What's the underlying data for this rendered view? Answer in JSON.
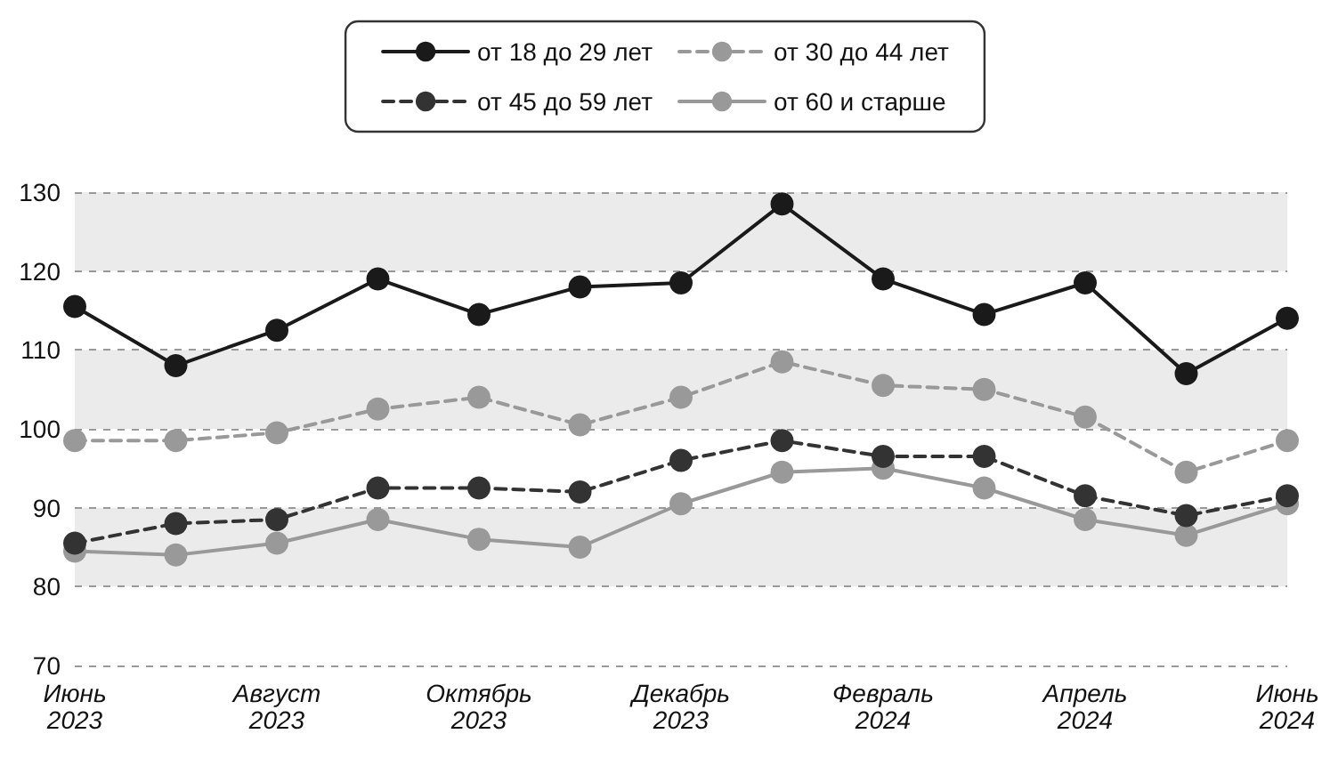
{
  "chart_data": {
    "type": "line",
    "categories": [
      "Июнь\n2023",
      null,
      "Август\n2023",
      null,
      "Октябрь\n2023",
      null,
      "Декабрь\n2023",
      null,
      "Февраль\n2024",
      null,
      "Апрель\n2024",
      null,
      "Июнь\n2024"
    ],
    "series": [
      {
        "name": "от 18 до 29 лет",
        "color": "#1a1a1a",
        "line_style": "solid",
        "values": [
          115.5,
          108,
          112.5,
          119,
          114.5,
          118,
          118.5,
          128.5,
          119,
          114.5,
          118.5,
          107,
          114
        ]
      },
      {
        "name": "от 30 до 44 лет",
        "color": "#999999",
        "line_style": "dashed",
        "values": [
          98.5,
          98.5,
          99.5,
          102.5,
          104,
          100.5,
          104,
          108.5,
          105.5,
          105,
          101.5,
          94.5,
          98.5
        ]
      },
      {
        "name": "от 45 до 59 лет",
        "color": "#333333",
        "line_style": "dashed",
        "values": [
          85.5,
          88,
          88.5,
          92.5,
          92.5,
          92,
          96,
          98.5,
          96.5,
          96.5,
          91.5,
          89,
          91.5
        ]
      },
      {
        "name": "от 60 и старше",
        "color": "#999999",
        "line_style": "solid",
        "values": [
          84.5,
          84,
          85.5,
          88.5,
          86,
          85,
          90.5,
          94.5,
          95,
          92.5,
          88.5,
          86.5,
          90.5
        ]
      }
    ],
    "ylim": [
      70,
      130
    ],
    "yticks": [
      70,
      80,
      90,
      100,
      110,
      120,
      130
    ],
    "grid": "y",
    "legend": "top",
    "marker": "circle"
  }
}
